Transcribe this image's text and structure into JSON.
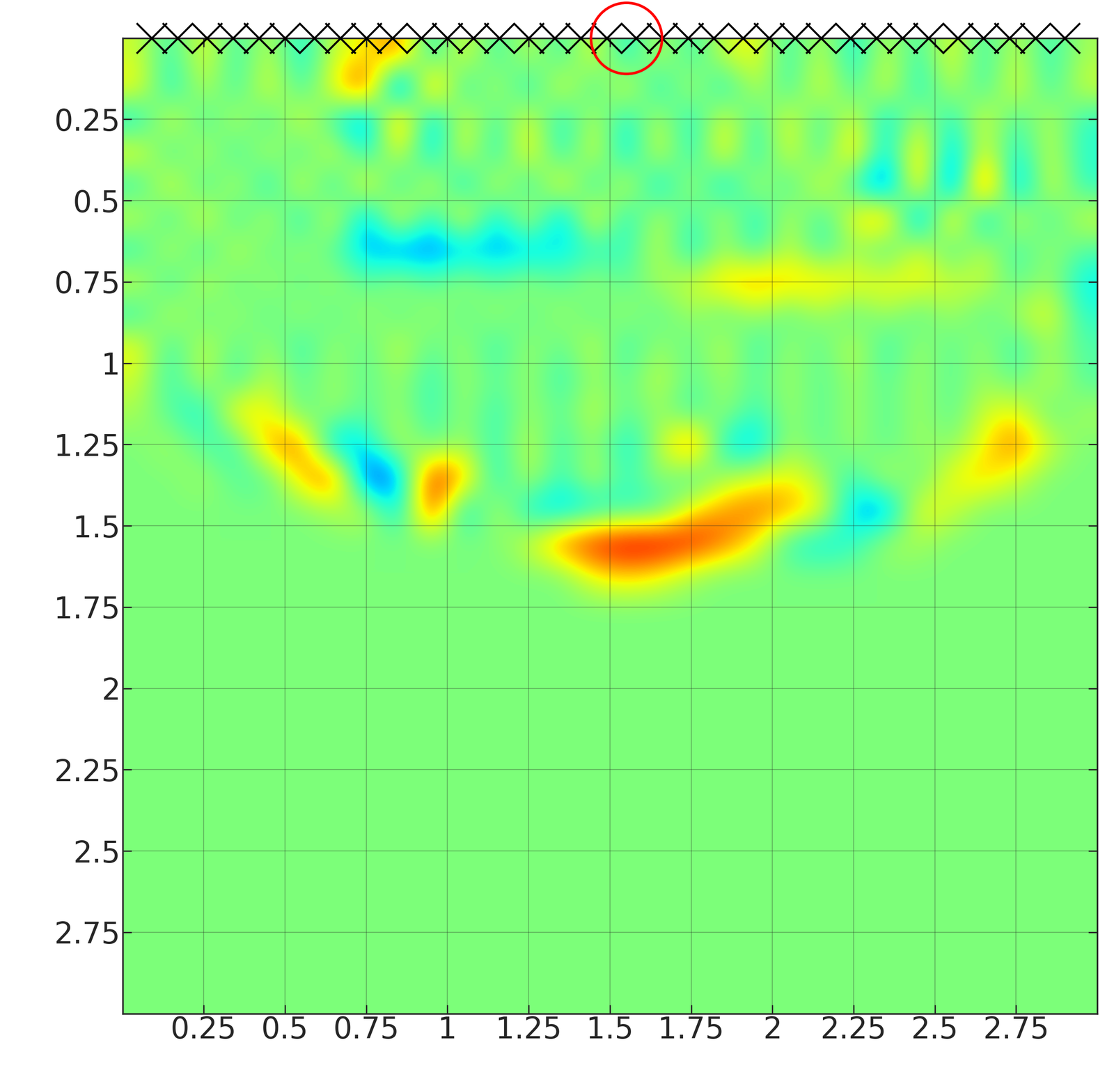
{
  "chart_data": {
    "type": "heatmap",
    "color": "jet",
    "color_range": [
      -1,
      1
    ],
    "grid": true,
    "xlim": [
      0,
      3
    ],
    "ylim": [
      3,
      0
    ],
    "xticks": [
      0.25,
      0.5,
      0.75,
      1,
      1.25,
      1.5,
      1.75,
      2,
      2.25,
      2.5,
      2.75
    ],
    "yticks": [
      0.25,
      0.5,
      0.75,
      1,
      1.25,
      1.5,
      1.75,
      2,
      2.25,
      2.5,
      2.75
    ],
    "x": [
      0.05,
      0.15,
      0.25,
      0.35,
      0.45,
      0.55,
      0.65,
      0.75,
      0.85,
      0.95,
      1.05,
      1.15,
      1.25,
      1.35,
      1.45,
      1.55,
      1.65,
      1.75,
      1.85,
      1.95,
      2.05,
      2.15,
      2.25,
      2.35,
      2.45,
      2.55,
      2.65,
      2.75,
      2.85,
      2.95
    ],
    "y": [
      0.05,
      0.15,
      0.25,
      0.35,
      0.45,
      0.55,
      0.65,
      0.75,
      0.85,
      0.95,
      1.05,
      1.15,
      1.25,
      1.35,
      1.45,
      1.55,
      1.65,
      1.75,
      1.85,
      1.95,
      2.05,
      2.15,
      2.25,
      2.35,
      2.45,
      2.55,
      2.65,
      2.75,
      2.85,
      2.95
    ],
    "cells": [
      [
        0.2,
        -0.2,
        0.3,
        -0.2,
        0.2,
        -0.3,
        0.2,
        0.3,
        0.6,
        -0.3,
        0.3,
        -0.2,
        0.2,
        -0.2,
        0.3,
        -0.3,
        0.2,
        -0.2,
        0.2,
        0.3,
        -0.2,
        0.2,
        -0.3,
        0.2,
        -0.2,
        0.3,
        -0.2,
        0.2,
        -0.2,
        0.1
      ],
      [
        0.3,
        -0.3,
        0.2,
        -0.2,
        0.3,
        -0.2,
        0.3,
        0.8,
        -0.9,
        0.7,
        -0.3,
        0.2,
        -0.3,
        0.3,
        -0.2,
        0.3,
        -0.3,
        0.2,
        -0.3,
        0.2,
        -0.2,
        0.3,
        -0.2,
        0.3,
        -0.3,
        0.2,
        -0.2,
        0.3,
        -0.2,
        0.2
      ],
      [
        -0.3,
        0.3,
        -0.2,
        0.2,
        -0.2,
        0.3,
        -0.2,
        -0.6,
        0.7,
        -0.5,
        0.3,
        -0.2,
        0.3,
        -0.3,
        0.2,
        -0.3,
        0.2,
        -0.3,
        0.3,
        -0.2,
        0.3,
        -0.2,
        0.3,
        -0.4,
        0.2,
        -0.3,
        0.3,
        -0.2,
        0.2,
        -0.2
      ],
      [
        0.3,
        -0.2,
        0.2,
        -0.2,
        0.2,
        -0.2,
        0.3,
        -0.3,
        0.3,
        -0.4,
        0.3,
        -0.3,
        0.4,
        -0.3,
        0.3,
        -0.4,
        0.3,
        -0.3,
        0.4,
        -0.3,
        0.3,
        -0.2,
        0.5,
        -0.4,
        0.5,
        -0.5,
        0.3,
        -0.3,
        0.2,
        -0.2
      ],
      [
        -0.2,
        0.3,
        -0.2,
        0.2,
        -0.3,
        0.3,
        -0.3,
        0.4,
        -0.3,
        0.3,
        -0.4,
        0.3,
        -0.3,
        0.4,
        -0.3,
        0.3,
        -0.4,
        0.2,
        -0.4,
        0.2,
        -0.2,
        0.3,
        -0.2,
        -0.7,
        0.6,
        -0.8,
        0.9,
        -0.6,
        0.3,
        -0.2
      ],
      [
        0.2,
        -0.2,
        0.3,
        -0.2,
        0.2,
        -0.3,
        0.3,
        -0.5,
        0.4,
        -0.3,
        0.4,
        -0.4,
        0.3,
        -0.5,
        0.4,
        -0.3,
        0.2,
        -0.2,
        0.2,
        -0.3,
        0.2,
        -0.2,
        0.3,
        0.6,
        -0.7,
        0.6,
        -0.5,
        0.3,
        -0.2,
        0.2
      ],
      [
        -0.2,
        0.2,
        -0.2,
        0.2,
        -0.1,
        0.1,
        -0.1,
        -0.4,
        -0.5,
        -0.5,
        -0.4,
        -0.4,
        -0.4,
        -0.3,
        -0.2,
        -0.2,
        0.2,
        -0.3,
        0.1,
        -0.2,
        0.2,
        -0.2,
        0.1,
        -0.2,
        0.3,
        -0.2,
        0.2,
        -0.2,
        0.1,
        -0.1
      ],
      [
        0.2,
        -0.2,
        0.2,
        -0.1,
        0.1,
        -0.1,
        0.1,
        -0.1,
        0.1,
        -0.1,
        0.1,
        -0.1,
        0.1,
        -0.1,
        0.1,
        -0.1,
        0.1,
        0.2,
        0.4,
        0.5,
        0.4,
        0.4,
        0.3,
        0.3,
        0.3,
        0.2,
        0.2,
        -0.1,
        0.1,
        -0.3
      ],
      [
        -0.2,
        0.2,
        -0.1,
        0.1,
        -0.1,
        0.1,
        -0.1,
        0.1,
        -0.1,
        0.1,
        -0.1,
        0.1,
        -0.1,
        0.1,
        -0.1,
        0.1,
        -0.1,
        0.1,
        -0.1,
        0.1,
        -0.1,
        0.1,
        -0.1,
        0.1,
        -0.1,
        0.1,
        -0.1,
        0.1,
        0.3,
        -0.2
      ],
      [
        0.3,
        -0.2,
        0.2,
        -0.1,
        0.1,
        -0.2,
        0.1,
        -0.1,
        0.2,
        -0.1,
        0.1,
        -0.2,
        0.1,
        -0.1,
        0.2,
        -0.2,
        0.1,
        -0.1,
        0.2,
        -0.2,
        0.1,
        -0.1,
        0.2,
        -0.2,
        0.1,
        -0.1,
        0.1,
        -0.2,
        0.1,
        -0.1
      ],
      [
        0.2,
        -0.2,
        0.2,
        -0.2,
        0.2,
        -0.1,
        0.1,
        -0.1,
        0.1,
        -0.2,
        0.1,
        -0.1,
        0.1,
        -0.2,
        0.1,
        -0.1,
        0.2,
        -0.1,
        0.1,
        -0.1,
        0.1,
        -0.1,
        0.1,
        -0.1,
        0.1,
        -0.1,
        0.1,
        -0.1,
        0.2,
        -0.1
      ],
      [
        0.1,
        -0.1,
        -0.3,
        0.4,
        0.3,
        -0.1,
        0.1,
        -0.1,
        0.1,
        -0.2,
        0.1,
        -0.2,
        0.1,
        -0.1,
        0.2,
        -0.1,
        0.1,
        -0.2,
        0.1,
        -0.2,
        0.1,
        -0.1,
        0.1,
        -0.1,
        0.1,
        -0.1,
        0.2,
        0.3,
        -0.1,
        0.1
      ],
      [
        0.0,
        0.1,
        -0.1,
        -0.2,
        0.5,
        0.6,
        -0.5,
        -0.3,
        0.2,
        -0.1,
        0.1,
        -0.2,
        0.2,
        -0.2,
        0.1,
        -0.3,
        0.1,
        0.7,
        -0.3,
        -0.4,
        0.1,
        -0.1,
        0.1,
        -0.1,
        0.1,
        0.0,
        0.3,
        0.6,
        0.2,
        0.0
      ],
      [
        0.0,
        0.0,
        0.1,
        -0.1,
        -0.1,
        0.4,
        0.7,
        -0.7,
        -0.5,
        0.8,
        0.5,
        -0.3,
        0.2,
        -0.2,
        0.2,
        -0.2,
        0.1,
        -0.2,
        0.1,
        0.2,
        0.3,
        0.1,
        -0.2,
        0.2,
        -0.1,
        0.3,
        0.4,
        0.2,
        0.0,
        0.0
      ],
      [
        0.0,
        0.0,
        0.0,
        0.0,
        0.0,
        0.0,
        0.1,
        0.2,
        -0.4,
        0.8,
        -0.4,
        0.2,
        -0.3,
        -0.4,
        -0.3,
        -0.2,
        -0.2,
        0.3,
        0.5,
        0.6,
        0.5,
        0.3,
        -0.4,
        -0.5,
        0.3,
        0.2,
        0.0,
        0.0,
        0.0,
        0.0
      ],
      [
        0.0,
        0.0,
        0.0,
        0.0,
        0.0,
        0.0,
        0.0,
        0.0,
        0.0,
        0.0,
        0.0,
        0.0,
        0.2,
        0.6,
        0.8,
        0.9,
        0.9,
        0.8,
        0.6,
        0.3,
        -0.2,
        -0.3,
        -0.2,
        0.1,
        0.1,
        0.0,
        0.0,
        0.0,
        0.0,
        0.0
      ],
      [
        0,
        0,
        0,
        0,
        0,
        0,
        0,
        0,
        0,
        0,
        0,
        0,
        0,
        0,
        0.3,
        0.4,
        0.3,
        0.1,
        0,
        0,
        0,
        0,
        0,
        0,
        0,
        0,
        0,
        0,
        0,
        0
      ],
      [
        0,
        0,
        0,
        0,
        0,
        0,
        0,
        0,
        0,
        0,
        0,
        0,
        0,
        0,
        0,
        0,
        0,
        0,
        0,
        0,
        0,
        0,
        0,
        0,
        0,
        0,
        0,
        0,
        0,
        0
      ],
      [
        0,
        0,
        0,
        0,
        0,
        0,
        0,
        0,
        0,
        0,
        0,
        0,
        0,
        0,
        0,
        0,
        0,
        0,
        0,
        0,
        0,
        0,
        0,
        0,
        0,
        0,
        0,
        0,
        0,
        0
      ],
      [
        0,
        0,
        0,
        0,
        0,
        0,
        0,
        0,
        0,
        0,
        0,
        0,
        0,
        0,
        0,
        0,
        0,
        0,
        0,
        0,
        0,
        0,
        0,
        0,
        0,
        0,
        0,
        0,
        0,
        0
      ],
      [
        0,
        0,
        0,
        0,
        0,
        0,
        0,
        0,
        0,
        0,
        0,
        0,
        0,
        0,
        0,
        0,
        0,
        0,
        0,
        0,
        0,
        0,
        0,
        0,
        0,
        0,
        0,
        0,
        0,
        0
      ],
      [
        0,
        0,
        0,
        0,
        0,
        0,
        0,
        0,
        0,
        0,
        0,
        0,
        0,
        0,
        0,
        0,
        0,
        0,
        0,
        0,
        0,
        0,
        0,
        0,
        0,
        0,
        0,
        0,
        0,
        0
      ],
      [
        0,
        0,
        0,
        0,
        0,
        0,
        0,
        0,
        0,
        0,
        0,
        0,
        0,
        0,
        0,
        0,
        0,
        0,
        0,
        0,
        0,
        0,
        0,
        0,
        0,
        0,
        0,
        0,
        0,
        0
      ],
      [
        0,
        0,
        0,
        0,
        0,
        0,
        0,
        0,
        0,
        0,
        0,
        0,
        0,
        0,
        0,
        0,
        0,
        0,
        0,
        0,
        0,
        0,
        0,
        0,
        0,
        0,
        0,
        0,
        0,
        0
      ],
      [
        0,
        0,
        0,
        0,
        0,
        0,
        0,
        0,
        0,
        0,
        0,
        0,
        0,
        0,
        0,
        0,
        0,
        0,
        0,
        0,
        0,
        0,
        0,
        0,
        0,
        0,
        0,
        0,
        0,
        0
      ],
      [
        0,
        0,
        0,
        0,
        0,
        0,
        0,
        0,
        0,
        0,
        0,
        0,
        0,
        0,
        0,
        0,
        0,
        0,
        0,
        0,
        0,
        0,
        0,
        0,
        0,
        0,
        0,
        0,
        0,
        0
      ],
      [
        0,
        0,
        0,
        0,
        0,
        0,
        0,
        0,
        0,
        0,
        0,
        0,
        0,
        0,
        0,
        0,
        0,
        0,
        0,
        0,
        0,
        0,
        0,
        0,
        0,
        0,
        0,
        0,
        0,
        0
      ],
      [
        0,
        0,
        0,
        0,
        0,
        0,
        0,
        0,
        0,
        0,
        0,
        0,
        0,
        0,
        0,
        0,
        0,
        0,
        0,
        0,
        0,
        0,
        0,
        0,
        0,
        0,
        0,
        0,
        0,
        0
      ],
      [
        0,
        0,
        0,
        0,
        0,
        0,
        0,
        0,
        0,
        0,
        0,
        0,
        0,
        0,
        0,
        0,
        0,
        0,
        0,
        0,
        0,
        0,
        0,
        0,
        0,
        0,
        0,
        0,
        0,
        0
      ],
      [
        0,
        0,
        0,
        0,
        0,
        0,
        0,
        0,
        0,
        0,
        0,
        0,
        0,
        0,
        0,
        0,
        0,
        0,
        0,
        0,
        0,
        0,
        0,
        0,
        0,
        0,
        0,
        0,
        0,
        0
      ]
    ],
    "receivers": {
      "x": [
        0.09,
        0.17,
        0.26,
        0.34,
        0.42,
        0.5,
        0.59,
        0.67,
        0.75,
        0.83,
        0.92,
        1.0,
        1.08,
        1.16,
        1.25,
        1.33,
        1.41,
        1.49,
        1.58,
        1.66,
        1.74,
        1.82,
        1.91,
        1.99,
        2.07,
        2.15,
        2.24,
        2.32,
        2.4,
        2.48,
        2.57,
        2.65,
        2.73,
        2.81,
        2.9
      ],
      "y": 0,
      "marker": "x",
      "color": "black"
    },
    "source": {
      "x": 1.55,
      "y": 0,
      "marker": "o",
      "color": "red"
    }
  }
}
